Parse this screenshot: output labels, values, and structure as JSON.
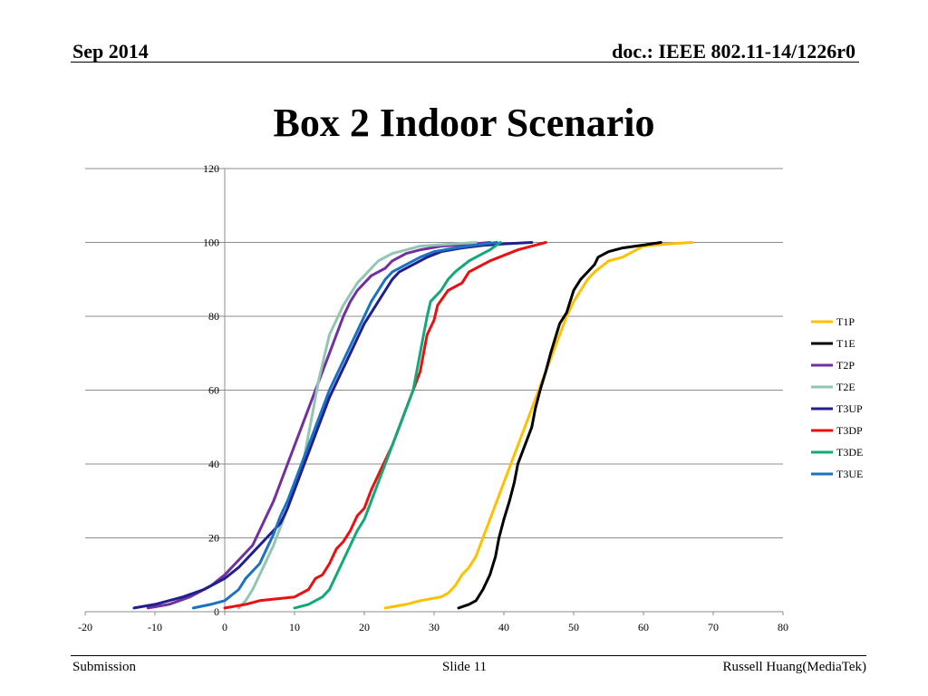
{
  "header": {
    "date": "Sep 2014",
    "doc_id": "doc.: IEEE 802.11-14/1226r0"
  },
  "slide_title": "Box 2 Indoor Scenario",
  "footer": {
    "left": "Submission",
    "center": "Slide 11",
    "right": "Russell Huang(MediaTek)"
  },
  "chart_data": {
    "type": "line",
    "title": "",
    "xlabel": "",
    "ylabel": "",
    "xlim": [
      -20,
      80
    ],
    "ylim": [
      0,
      120
    ],
    "x_ticks": [
      -20,
      -10,
      0,
      10,
      20,
      30,
      40,
      50,
      60,
      70,
      80
    ],
    "y_ticks": [
      0,
      20,
      40,
      60,
      80,
      100,
      120
    ],
    "grid": "horizontal",
    "legend": "right",
    "series": [
      {
        "name": "T1P",
        "color": "#FFC000",
        "points": [
          [
            23,
            1
          ],
          [
            26,
            2
          ],
          [
            28,
            3
          ],
          [
            31,
            4
          ],
          [
            32,
            5
          ],
          [
            33,
            7
          ],
          [
            34,
            10
          ],
          [
            35,
            12
          ],
          [
            36,
            15
          ],
          [
            37,
            20
          ],
          [
            38,
            25
          ],
          [
            39,
            30
          ],
          [
            40,
            35
          ],
          [
            41,
            40
          ],
          [
            42,
            45
          ],
          [
            43,
            50
          ],
          [
            44,
            55
          ],
          [
            45,
            60
          ],
          [
            46,
            65
          ],
          [
            47,
            70
          ],
          [
            48,
            75
          ],
          [
            49,
            80
          ],
          [
            50,
            84
          ],
          [
            51,
            87
          ],
          [
            52,
            90
          ],
          [
            53,
            92
          ],
          [
            55,
            95
          ],
          [
            57,
            96
          ],
          [
            58,
            97
          ],
          [
            60,
            99
          ],
          [
            63,
            99.5
          ],
          [
            67,
            100
          ]
        ]
      },
      {
        "name": "T1E",
        "color": "#000000",
        "points": [
          [
            33.5,
            1
          ],
          [
            35,
            2
          ],
          [
            36,
            3
          ],
          [
            37,
            6
          ],
          [
            38,
            10
          ],
          [
            38.8,
            15
          ],
          [
            39.3,
            20
          ],
          [
            40,
            25
          ],
          [
            40.8,
            30
          ],
          [
            41.5,
            35
          ],
          [
            42,
            40
          ],
          [
            43,
            45
          ],
          [
            44,
            50
          ],
          [
            44.5,
            55
          ],
          [
            45.2,
            60
          ],
          [
            46,
            65
          ],
          [
            46.7,
            70
          ],
          [
            47.5,
            75
          ],
          [
            48,
            78
          ],
          [
            49,
            81
          ],
          [
            49.5,
            84
          ],
          [
            50,
            87
          ],
          [
            51,
            90
          ],
          [
            52,
            92
          ],
          [
            53,
            94
          ],
          [
            53.5,
            96
          ],
          [
            55,
            97.5
          ],
          [
            57,
            98.5
          ],
          [
            60,
            99.3
          ],
          [
            62.5,
            100
          ]
        ]
      },
      {
        "name": "T2P",
        "color": "#7030A0",
        "points": [
          [
            -11,
            1
          ],
          [
            -8,
            2
          ],
          [
            -5,
            4
          ],
          [
            -2,
            7
          ],
          [
            0,
            10
          ],
          [
            2,
            14
          ],
          [
            4,
            18
          ],
          [
            5,
            22
          ],
          [
            6,
            26
          ],
          [
            7,
            30
          ],
          [
            8,
            35
          ],
          [
            9,
            40
          ],
          [
            10,
            45
          ],
          [
            11,
            50
          ],
          [
            12,
            55
          ],
          [
            13,
            60
          ],
          [
            14,
            65
          ],
          [
            15,
            70
          ],
          [
            16,
            75
          ],
          [
            17,
            80
          ],
          [
            18,
            84
          ],
          [
            19,
            87
          ],
          [
            20,
            89
          ],
          [
            21,
            91
          ],
          [
            23,
            93
          ],
          [
            24,
            95
          ],
          [
            26,
            97
          ],
          [
            28,
            98
          ],
          [
            31,
            99
          ],
          [
            35,
            99.5
          ],
          [
            38,
            100
          ]
        ]
      },
      {
        "name": "T2E",
        "color": "#93C5B3",
        "points": [
          [
            2,
            1
          ],
          [
            3,
            3
          ],
          [
            4,
            6
          ],
          [
            5,
            10
          ],
          [
            6,
            14
          ],
          [
            7,
            18
          ],
          [
            8,
            23
          ],
          [
            9,
            28
          ],
          [
            10,
            33
          ],
          [
            11,
            38
          ],
          [
            11.5,
            43
          ],
          [
            12,
            48
          ],
          [
            12.5,
            53
          ],
          [
            13,
            58
          ],
          [
            13.5,
            63
          ],
          [
            14,
            67
          ],
          [
            14.5,
            71
          ],
          [
            15,
            75
          ],
          [
            16,
            79
          ],
          [
            17,
            83
          ],
          [
            18,
            86
          ],
          [
            19,
            89
          ],
          [
            20,
            91
          ],
          [
            21,
            93
          ],
          [
            22,
            95
          ],
          [
            24,
            97
          ],
          [
            26,
            98
          ],
          [
            28,
            99
          ],
          [
            32,
            99.5
          ],
          [
            36,
            100
          ]
        ]
      },
      {
        "name": "T3UP",
        "color": "#1F1F8F",
        "points": [
          [
            -13,
            1
          ],
          [
            -10,
            2
          ],
          [
            -6,
            4
          ],
          [
            -3,
            6
          ],
          [
            0,
            9
          ],
          [
            2,
            12
          ],
          [
            4,
            16
          ],
          [
            6,
            20
          ],
          [
            8,
            24
          ],
          [
            9,
            28
          ],
          [
            10,
            33
          ],
          [
            11,
            38
          ],
          [
            12,
            43
          ],
          [
            13,
            48
          ],
          [
            14,
            53
          ],
          [
            15,
            58
          ],
          [
            16,
            62
          ],
          [
            17,
            66
          ],
          [
            18,
            70
          ],
          [
            19,
            74
          ],
          [
            20,
            78
          ],
          [
            21,
            81
          ],
          [
            22,
            84
          ],
          [
            23,
            87
          ],
          [
            24,
            90
          ],
          [
            25,
            92
          ],
          [
            27,
            94
          ],
          [
            29,
            96
          ],
          [
            31,
            97.5
          ],
          [
            34,
            98.5
          ],
          [
            37,
            99.2
          ],
          [
            40,
            99.6
          ],
          [
            44,
            100
          ]
        ]
      },
      {
        "name": "T3DP",
        "color": "#E81010",
        "points": [
          [
            0,
            1
          ],
          [
            3,
            2
          ],
          [
            5,
            3
          ],
          [
            10,
            4
          ],
          [
            12,
            6
          ],
          [
            13,
            9
          ],
          [
            14,
            10
          ],
          [
            15,
            13
          ],
          [
            16,
            17
          ],
          [
            17,
            19
          ],
          [
            18,
            22
          ],
          [
            19,
            26
          ],
          [
            20,
            28
          ],
          [
            21,
            33
          ],
          [
            22,
            37
          ],
          [
            23,
            41
          ],
          [
            24,
            45
          ],
          [
            25,
            50
          ],
          [
            26,
            55
          ],
          [
            27,
            60
          ],
          [
            28,
            65
          ],
          [
            28.5,
            70
          ],
          [
            29,
            75
          ],
          [
            30,
            79
          ],
          [
            30.5,
            83
          ],
          [
            32,
            87
          ],
          [
            34,
            89
          ],
          [
            35,
            92
          ],
          [
            37,
            94
          ],
          [
            38,
            95
          ],
          [
            40,
            96.5
          ],
          [
            42,
            98
          ],
          [
            44,
            99
          ],
          [
            46,
            100
          ]
        ]
      },
      {
        "name": "T3DE",
        "color": "#12A87A",
        "points": [
          [
            10,
            1
          ],
          [
            12,
            2
          ],
          [
            14,
            4
          ],
          [
            15,
            6
          ],
          [
            16,
            10
          ],
          [
            17,
            14
          ],
          [
            18,
            18
          ],
          [
            19,
            22
          ],
          [
            20,
            25
          ],
          [
            21,
            30
          ],
          [
            22,
            35
          ],
          [
            23,
            40
          ],
          [
            24,
            45
          ],
          [
            25,
            50
          ],
          [
            26,
            55
          ],
          [
            27,
            60
          ],
          [
            27.5,
            65
          ],
          [
            28,
            70
          ],
          [
            28.5,
            75
          ],
          [
            29,
            80
          ],
          [
            29.5,
            84
          ],
          [
            31,
            87
          ],
          [
            32,
            90
          ],
          [
            33,
            92
          ],
          [
            35,
            95
          ],
          [
            37,
            97
          ],
          [
            38,
            98
          ],
          [
            39.5,
            100
          ]
        ]
      },
      {
        "name": "T3UE",
        "color": "#1A72C0",
        "points": [
          [
            -4.5,
            1
          ],
          [
            -2,
            2
          ],
          [
            0,
            3
          ],
          [
            2,
            6
          ],
          [
            3,
            9
          ],
          [
            5,
            13
          ],
          [
            6,
            17
          ],
          [
            7,
            21
          ],
          [
            8,
            26
          ],
          [
            9,
            30
          ],
          [
            10,
            35
          ],
          [
            11,
            40
          ],
          [
            12,
            45
          ],
          [
            13,
            50
          ],
          [
            14,
            55
          ],
          [
            15,
            60
          ],
          [
            16,
            64
          ],
          [
            17,
            68
          ],
          [
            18,
            72
          ],
          [
            19,
            76
          ],
          [
            20,
            80
          ],
          [
            21,
            84
          ],
          [
            22,
            87
          ],
          [
            23,
            90
          ],
          [
            24,
            92
          ],
          [
            26,
            94
          ],
          [
            28,
            96
          ],
          [
            30,
            97.5
          ],
          [
            33,
            98.5
          ],
          [
            36,
            99.3
          ],
          [
            39,
            100
          ]
        ]
      }
    ]
  }
}
